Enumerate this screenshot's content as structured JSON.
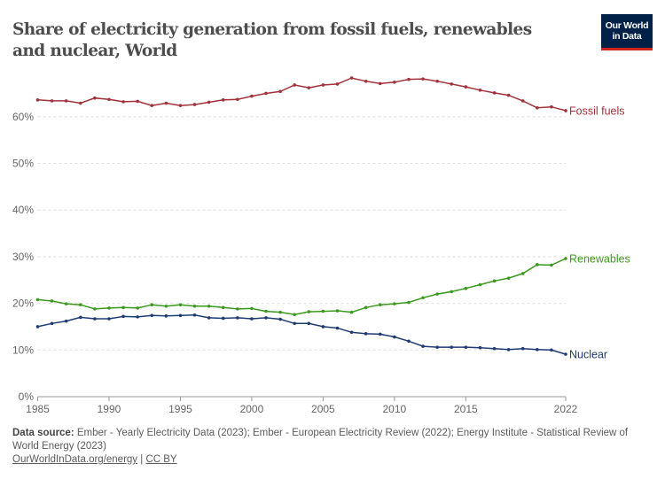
{
  "header": {
    "title": "Share of electricity generation from fossil fuels, renewables and nuclear, World",
    "logo_line1": "Our World",
    "logo_line2": "in Data"
  },
  "chart_data": {
    "type": "line",
    "title": "Share of electricity generation from fossil fuels, renewables and nuclear, World",
    "xlabel": "",
    "ylabel": "",
    "xlim": [
      1985,
      2022
    ],
    "ylim": [
      0,
      70
    ],
    "x_ticks": [
      "1985",
      "1990",
      "1995",
      "2000",
      "2005",
      "2010",
      "2015",
      "2022"
    ],
    "y_ticks": [
      "0%",
      "10%",
      "20%",
      "30%",
      "40%",
      "50%",
      "60%"
    ],
    "grid": "horizontal dotted",
    "legend": "inline labels at right end",
    "x": [
      1985,
      1986,
      1987,
      1988,
      1989,
      1990,
      1991,
      1992,
      1993,
      1994,
      1995,
      1996,
      1997,
      1998,
      1999,
      2000,
      2001,
      2002,
      2003,
      2004,
      2005,
      2006,
      2007,
      2008,
      2009,
      2010,
      2011,
      2012,
      2013,
      2014,
      2015,
      2016,
      2017,
      2018,
      2019,
      2020,
      2021,
      2022
    ],
    "series": [
      {
        "name": "Fossil fuels",
        "color": "#a2313a",
        "values": [
          63.6,
          63.4,
          63.4,
          62.9,
          64.0,
          63.7,
          63.2,
          63.3,
          62.4,
          62.9,
          62.4,
          62.6,
          63.1,
          63.6,
          63.7,
          64.4,
          65.0,
          65.4,
          66.8,
          66.2,
          66.8,
          67.0,
          68.3,
          67.6,
          67.1,
          67.4,
          68.0,
          68.1,
          67.6,
          67.0,
          66.4,
          65.7,
          65.1,
          64.6,
          63.4,
          61.9,
          62.1,
          61.3
        ]
      },
      {
        "name": "Renewables",
        "color": "#3a9a1e",
        "values": [
          20.8,
          20.5,
          19.9,
          19.7,
          18.8,
          19.0,
          19.1,
          19.0,
          19.7,
          19.4,
          19.7,
          19.4,
          19.4,
          19.1,
          18.8,
          18.9,
          18.3,
          18.1,
          17.6,
          18.2,
          18.3,
          18.4,
          18.1,
          19.1,
          19.7,
          19.9,
          20.2,
          21.2,
          22.0,
          22.5,
          23.2,
          24.0,
          24.8,
          25.4,
          26.4,
          28.3,
          28.2,
          29.6
        ]
      },
      {
        "name": "Nuclear",
        "color": "#1f3b73",
        "values": [
          15.0,
          15.7,
          16.2,
          17.0,
          16.7,
          16.7,
          17.2,
          17.1,
          17.4,
          17.3,
          17.4,
          17.5,
          16.9,
          16.8,
          16.9,
          16.7,
          16.9,
          16.6,
          15.7,
          15.7,
          15.0,
          14.7,
          13.8,
          13.5,
          13.4,
          12.8,
          11.9,
          10.8,
          10.6,
          10.6,
          10.6,
          10.5,
          10.3,
          10.1,
          10.3,
          10.1,
          10.0,
          9.1
        ]
      }
    ]
  },
  "footer": {
    "source_label": "Data source:",
    "source_text": " Ember - Yearly Electricity Data (2023); Ember - European Electricity Review (2022); Energy Institute - Statistical Review of World Energy (2023)",
    "link": "OurWorldInData.org/energy",
    "sep": " | ",
    "license": "CC BY"
  }
}
